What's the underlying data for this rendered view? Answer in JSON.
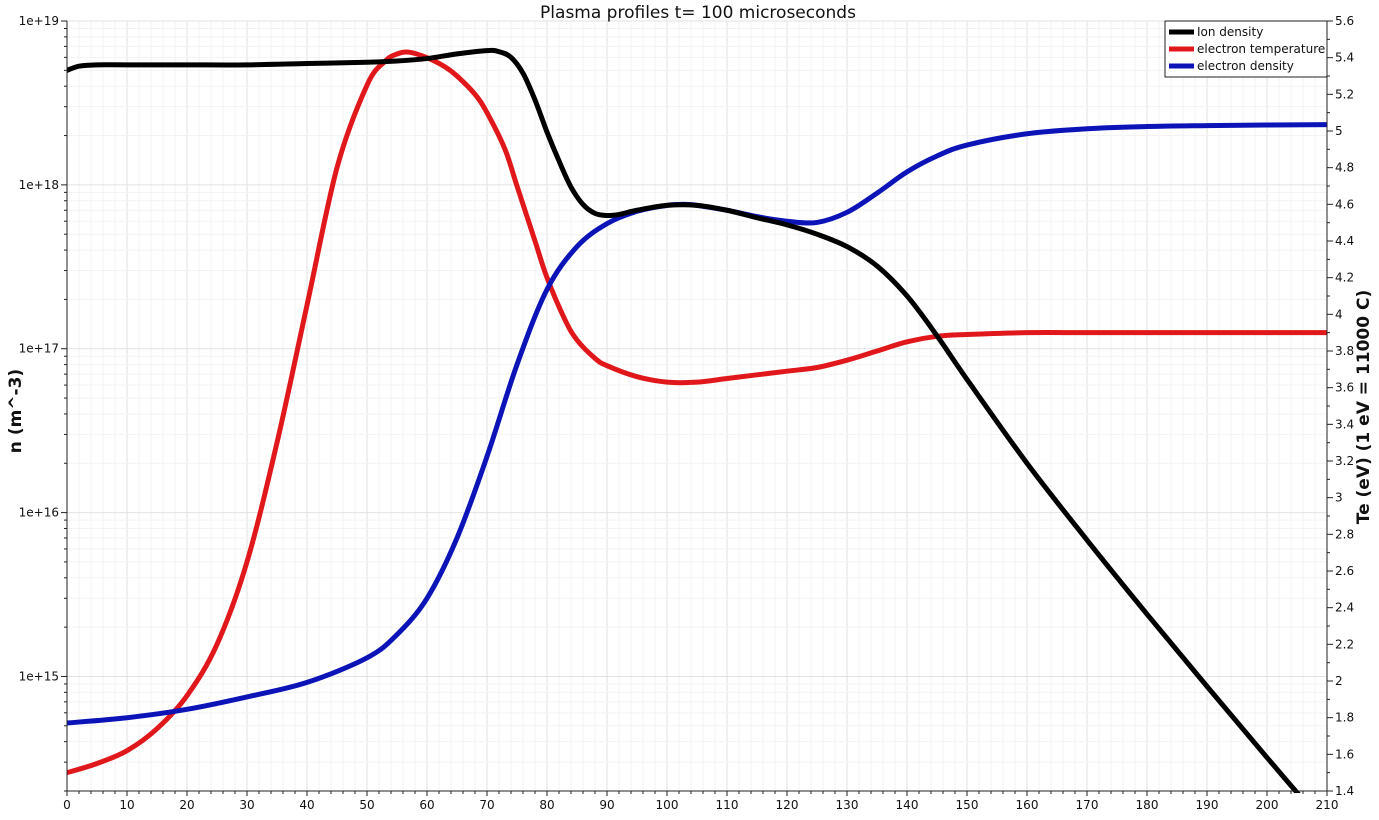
{
  "chart_data": {
    "type": "line",
    "title": "Plasma profiles t= 100 microseconds",
    "xlabel": "",
    "ylabel": "n (m^-3)",
    "y2label": "Te (eV)  (1 eV = 11000 C)",
    "xlim": [
      0,
      210
    ],
    "ylim": [
      200000000000000.0,
      1e+19
    ],
    "yscale": "log",
    "y2lim": [
      1.4,
      5.6
    ],
    "grid": true,
    "legend_position": "top-right",
    "x_ticks": [
      "0",
      "10",
      "20",
      "30",
      "40",
      "50",
      "60",
      "70",
      "80",
      "90",
      "100",
      "110",
      "120",
      "130",
      "140",
      "150",
      "160",
      "170",
      "180",
      "190",
      "200",
      "210"
    ],
    "y_ticks": [
      "1e+15",
      "1e+16",
      "1e+17",
      "1e+18",
      "1e+19"
    ],
    "y2_ticks": [
      "1.4",
      "1.6",
      "1.8",
      "2",
      "2.2",
      "2.4",
      "2.6",
      "2.8",
      "3",
      "3.2",
      "3.4",
      "3.6",
      "3.8",
      "4",
      "4.2",
      "4.4",
      "4.6",
      "4.8",
      "5",
      "5.2",
      "5.4",
      "5.6"
    ],
    "series": [
      {
        "name": "Ion density",
        "color": "#000000",
        "axis": "left",
        "x": [
          0,
          2,
          5,
          10,
          20,
          30,
          40,
          50,
          55,
          60,
          65,
          70,
          72,
          74,
          76,
          78,
          80,
          82,
          84,
          86,
          88,
          90,
          92,
          95,
          100,
          105,
          110,
          115,
          120,
          125,
          130,
          135,
          140,
          145,
          150,
          160,
          170,
          180,
          190,
          200,
          210
        ],
        "y": [
          5e+18,
          5.3e+18,
          5.4e+18,
          5.4e+18,
          5.4e+18,
          5.4e+18,
          5.5e+18,
          5.6e+18,
          5.7e+18,
          5.9e+18,
          6.3e+18,
          6.6e+18,
          6.5e+18,
          6e+18,
          4.8e+18,
          3.3e+18,
          2.1e+18,
          1.4e+18,
          9.7e+17,
          7.6e+17,
          6.7e+17,
          6.5e+17,
          6.6e+17,
          7e+17,
          7.5e+17,
          7.5e+17,
          7e+17,
          6.3e+17,
          5.7e+17,
          5e+17,
          4.2e+17,
          3.2e+17,
          2.1e+17,
          1.2e+17,
          6.5e+16,
          2e+16,
          6800000000000000.0,
          2400000000000000.0,
          870000000000000.0,
          320000000000000.0,
          120000000000000.0
        ]
      },
      {
        "name": "electron temperature",
        "color": "#e0181c",
        "axis": "right",
        "x": [
          0,
          5,
          10,
          15,
          20,
          25,
          30,
          35,
          40,
          45,
          50,
          53,
          55,
          57,
          60,
          63,
          65,
          68,
          70,
          73,
          75,
          78,
          80,
          83,
          85,
          88,
          90,
          95,
          100,
          105,
          110,
          115,
          120,
          125,
          130,
          135,
          140,
          145,
          150,
          160,
          170,
          180,
          190,
          200,
          210
        ],
        "y": [
          1.5,
          1.55,
          1.62,
          1.74,
          1.92,
          2.2,
          2.65,
          3.3,
          4.05,
          4.8,
          5.25,
          5.38,
          5.42,
          5.43,
          5.4,
          5.35,
          5.3,
          5.2,
          5.1,
          4.9,
          4.7,
          4.4,
          4.2,
          3.97,
          3.86,
          3.76,
          3.72,
          3.66,
          3.63,
          3.63,
          3.65,
          3.67,
          3.69,
          3.71,
          3.75,
          3.8,
          3.85,
          3.88,
          3.89,
          3.9,
          3.9,
          3.9,
          3.9,
          3.9,
          3.9
        ]
      },
      {
        "name": "electron density",
        "color": "#0c14b8",
        "axis": "left",
        "x": [
          0,
          10,
          20,
          30,
          40,
          50,
          55,
          60,
          65,
          70,
          75,
          80,
          85,
          90,
          95,
          100,
          103,
          105,
          110,
          115,
          120,
          125,
          130,
          135,
          140,
          145,
          150,
          160,
          170,
          180,
          190,
          200,
          210
        ],
        "y": [
          520000000000000.0,
          560000000000000.0,
          630000000000000.0,
          750000000000000.0,
          920000000000000.0,
          1300000000000000.0,
          1800000000000000.0,
          3000000000000000.0,
          7000000000000000.0,
          2.2e+16,
          8e+16,
          2.3e+17,
          4.2e+17,
          5.8e+17,
          6.9e+17,
          7.5e+17,
          7.6e+17,
          7.5e+17,
          7e+17,
          6.4e+17,
          6e+17,
          5.9e+17,
          6.8e+17,
          8.9e+17,
          1.2e+18,
          1.5e+18,
          1.75e+18,
          2.05e+18,
          2.2e+18,
          2.27e+18,
          2.3e+18,
          2.32e+18,
          2.33e+18
        ]
      }
    ]
  }
}
